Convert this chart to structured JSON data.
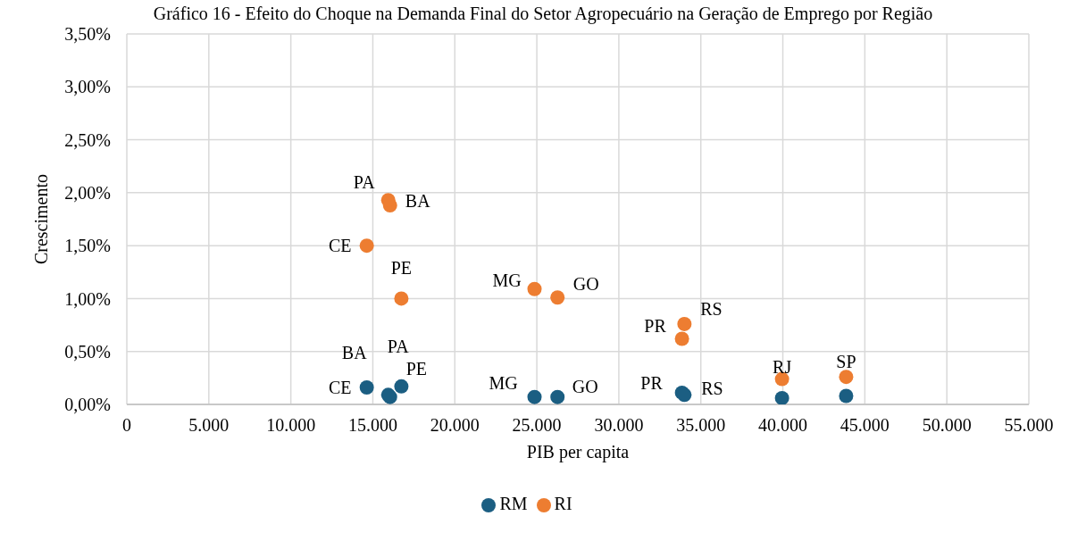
{
  "chart_data": {
    "type": "scatter",
    "title": "Gráfico 16 - Efeito do Choque na Demanda Final do Setor Agropecuário na Geração de Emprego por Região",
    "xlabel": "PIB per capita",
    "ylabel": "Crescimento",
    "xlim": [
      0,
      55000
    ],
    "xticks": [
      0,
      {
        "value": 5000,
        "label": "5.000"
      },
      {
        "value": 10000,
        "label": "10.000"
      },
      {
        "value": 15000,
        "label": "15.000"
      },
      {
        "value": 20000,
        "label": "20.000"
      },
      {
        "value": 25000,
        "label": "25.000"
      },
      {
        "value": 30000,
        "label": "30.000"
      },
      {
        "value": 35000,
        "label": "35.000"
      },
      {
        "value": 40000,
        "label": "40.000"
      },
      {
        "value": 45000,
        "label": "45.000"
      },
      {
        "value": 50000,
        "label": "50.000"
      },
      {
        "value": 55000,
        "label": "55.000"
      }
    ],
    "ylim": [
      0,
      3.5
    ],
    "yticks": [
      {
        "value": 0,
        "label": "0,00%"
      },
      {
        "value": 0.5,
        "label": "0,50%"
      },
      {
        "value": 1,
        "label": "1,00%"
      },
      {
        "value": 1.5,
        "label": "1,50%"
      },
      {
        "value": 2,
        "label": "2,00%"
      },
      {
        "value": 2.5,
        "label": "2,50%"
      },
      {
        "value": 3,
        "label": "3,00%"
      },
      {
        "value": 3.5,
        "label": "3,50%"
      }
    ],
    "grid": true,
    "legend": "bottom",
    "marker": "circle",
    "series": [
      {
        "name": "RM",
        "color": "#1b5e82",
        "x": [
          14630,
          16050,
          15940,
          16740,
          24860,
          26260,
          33850,
          34000,
          39950,
          43860
        ],
        "values": [
          0.16,
          0.07,
          0.09,
          0.17,
          0.07,
          0.07,
          0.11,
          0.09,
          0.06,
          0.08
        ],
        "value_labels": [
          "CE",
          "BA",
          "PA",
          "PE",
          "MG",
          "GO",
          "PR",
          "RS",
          null,
          null
        ]
      },
      {
        "name": "RI",
        "color": "#ed7d31",
        "x": [
          14630,
          16050,
          15940,
          16740,
          24860,
          26260,
          33850,
          34000,
          39950,
          43860
        ],
        "values": [
          1.5,
          1.88,
          1.93,
          1.0,
          1.09,
          1.01,
          0.62,
          0.76,
          0.24,
          0.26
        ],
        "value_labels": [
          "CE",
          "BA",
          "PA",
          "PE",
          "MG",
          "GO",
          "PR",
          "RS",
          "RJ",
          "SP"
        ]
      }
    ]
  }
}
